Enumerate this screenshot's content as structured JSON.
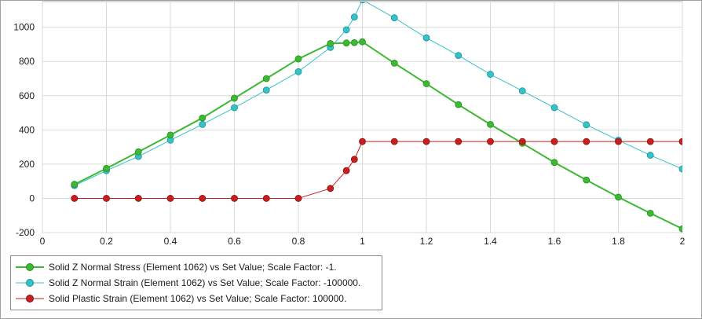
{
  "chart_data": {
    "type": "line",
    "title": "",
    "xlabel": "",
    "ylabel": "",
    "xlim": [
      0,
      2
    ],
    "ylim": [
      -200,
      1150
    ],
    "x_ticks": [
      0,
      0.2,
      0.4,
      0.6,
      0.8,
      1,
      1.2,
      1.4,
      1.6,
      1.8,
      2
    ],
    "x_tick_labels": [
      "0",
      "0.2",
      "0.4",
      "0.6",
      "0.8",
      "1",
      "1.2",
      "1.4",
      "1.6",
      "1.8",
      "2"
    ],
    "y_ticks": [
      -200,
      0,
      200,
      400,
      600,
      800,
      1000
    ],
    "y_tick_labels": [
      "-200",
      "0",
      "200",
      "400",
      "600",
      "800",
      "1000"
    ],
    "grid": true,
    "legend_position": "bottom-left",
    "series": [
      {
        "name": "Solid Z Normal Stress (Element 1062) vs Set Value; Scale Factor: -1.",
        "color": "#3cb832",
        "marker": "circle",
        "line_width": 2,
        "x": [
          0.1,
          0.2,
          0.3,
          0.4,
          0.5,
          0.6,
          0.7,
          0.8,
          0.9,
          0.95,
          0.975,
          1.0,
          1.1,
          1.2,
          1.3,
          1.4,
          1.5,
          1.6,
          1.7,
          1.8,
          1.9,
          2.0
        ],
        "y": [
          82,
          175,
          272,
          370,
          470,
          585,
          700,
          815,
          905,
          908,
          910,
          915,
          790,
          670,
          548,
          432,
          322,
          210,
          107,
          7,
          -87,
          -178
        ]
      },
      {
        "name": "Solid Z Normal Strain (Element 1062) vs Set Value; Scale Factor: -100000.",
        "color": "#33c3c8",
        "marker": "circle",
        "line_width": 1,
        "x": [
          0.1,
          0.2,
          0.3,
          0.4,
          0.5,
          0.6,
          0.7,
          0.8,
          0.9,
          0.95,
          0.975,
          1.0,
          1.1,
          1.2,
          1.3,
          1.4,
          1.5,
          1.6,
          1.7,
          1.8,
          1.9,
          2.0
        ],
        "y": [
          75,
          162,
          245,
          340,
          432,
          530,
          633,
          740,
          882,
          985,
          1060,
          1160,
          1055,
          938,
          835,
          725,
          628,
          530,
          430,
          340,
          252,
          172
        ]
      },
      {
        "name": "Solid Plastic Strain (Element 1062) vs Set Value; Scale Factor: 100000.",
        "color": "#c81e1e",
        "marker": "circle",
        "line_width": 1,
        "x": [
          0.1,
          0.2,
          0.3,
          0.4,
          0.5,
          0.6,
          0.7,
          0.8,
          0.9,
          0.95,
          0.975,
          1.0,
          1.1,
          1.2,
          1.3,
          1.4,
          1.5,
          1.6,
          1.7,
          1.8,
          1.9,
          2.0
        ],
        "y": [
          0,
          0,
          0,
          0,
          0,
          0,
          0,
          0,
          58,
          162,
          228,
          332,
          332,
          332,
          332,
          332,
          332,
          332,
          332,
          332,
          332,
          332
        ]
      }
    ]
  }
}
